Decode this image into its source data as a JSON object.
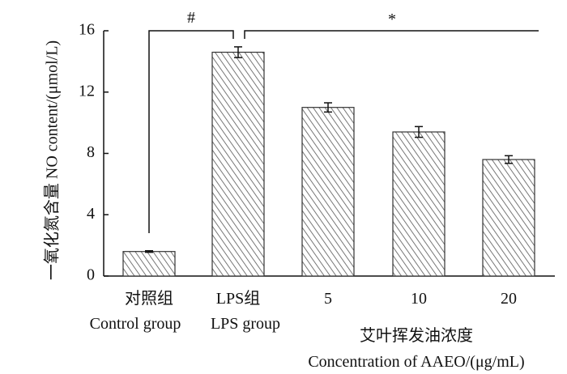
{
  "chart_data": {
    "type": "bar",
    "categories": [
      {
        "line1": "对照组",
        "line2": "Control group"
      },
      {
        "line1": "LPS组",
        "line2": "LPS group"
      },
      {
        "line1": "5",
        "line2": ""
      },
      {
        "line1": "10",
        "line2": ""
      },
      {
        "line1": "20",
        "line2": ""
      }
    ],
    "values": [
      1.6,
      14.6,
      11.0,
      9.4,
      7.6
    ],
    "errors": [
      0.05,
      0.35,
      0.3,
      0.35,
      0.25
    ],
    "ylabel": "一氧化氮含量  NO content/(μmol/L)",
    "ylim": [
      0,
      16
    ],
    "yticks": [
      0,
      4,
      8,
      12,
      16
    ],
    "ytick_labels": [
      "0",
      "4",
      "8",
      "12",
      "16"
    ],
    "group_label": {
      "line1": "艾叶挥发油浓度",
      "line2": "Concentration of AAEO/(μg/mL)"
    },
    "significance": [
      {
        "symbol": "#",
        "from": 0,
        "to": 1
      },
      {
        "symbol": "*",
        "from": 1,
        "to": 4
      }
    ],
    "bar_fill": "hatched",
    "grid": false
  }
}
